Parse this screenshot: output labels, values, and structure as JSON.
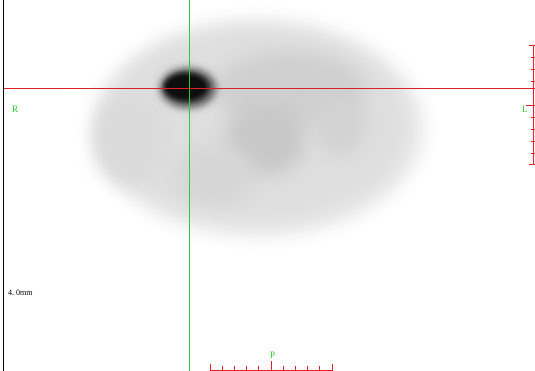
{
  "viewer": {
    "orientation_labels": {
      "right": "R",
      "left": "L",
      "posterior": "P"
    },
    "slice_thickness": "4. 0mm"
  }
}
